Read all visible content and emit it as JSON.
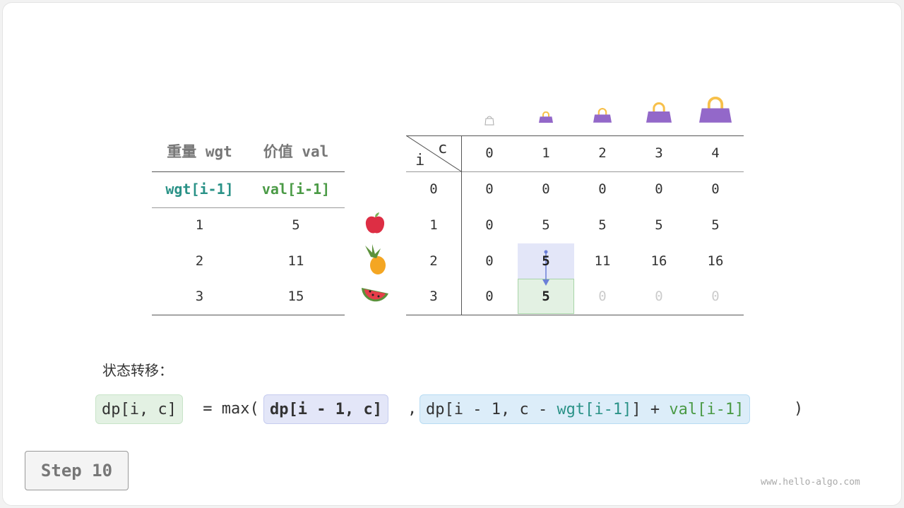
{
  "left_table": {
    "headers": [
      "重量 wgt",
      "价值 val"
    ],
    "subheaders": [
      "wgt[i-1]",
      "val[i-1]"
    ],
    "rows": [
      [
        "1",
        "5"
      ],
      [
        "2",
        "11"
      ],
      [
        "3",
        "15"
      ]
    ],
    "items": [
      "apple-icon",
      "pineapple-icon",
      "watermelon-icon"
    ]
  },
  "dp_table": {
    "corner_i": "i",
    "corner_c": "c",
    "col_headers": [
      "0",
      "1",
      "2",
      "3",
      "4"
    ],
    "row_headers": [
      "0",
      "1",
      "2",
      "3"
    ],
    "rows": [
      [
        "0",
        "0",
        "0",
        "0",
        "0"
      ],
      [
        "0",
        "5",
        "5",
        "5",
        "5"
      ],
      [
        "0",
        "5",
        "11",
        "16",
        "16"
      ],
      [
        "0",
        "5",
        "0",
        "0",
        "0"
      ]
    ],
    "highlight_source": [
      2,
      1
    ],
    "highlight_target": [
      3,
      1
    ],
    "bag_icons": [
      "bag-icon-0",
      "bag-icon-1",
      "bag-icon-2",
      "bag-icon-3",
      "bag-icon-4"
    ]
  },
  "formula": {
    "label": "状态转移：",
    "lhs": "dp[i, c]",
    "eq": " = max(",
    "arg1": "dp[i - 1, c]",
    "comma": ",",
    "arg2_a": "dp[i - 1, c - ",
    "arg2_wgt": "wgt[i-1]",
    "arg2_b": "] + ",
    "arg2_val": "val[i-1]",
    "close": ")"
  },
  "step_label": "Step 10",
  "watermark": "www.hello-algo.com",
  "colors": {
    "teal": "#2a9287",
    "green": "#4a9a45",
    "source_bg": "#e3e6f8",
    "target_bg": "#e3f1e3",
    "bag": "#9368c9",
    "handle": "#f7c04a"
  }
}
